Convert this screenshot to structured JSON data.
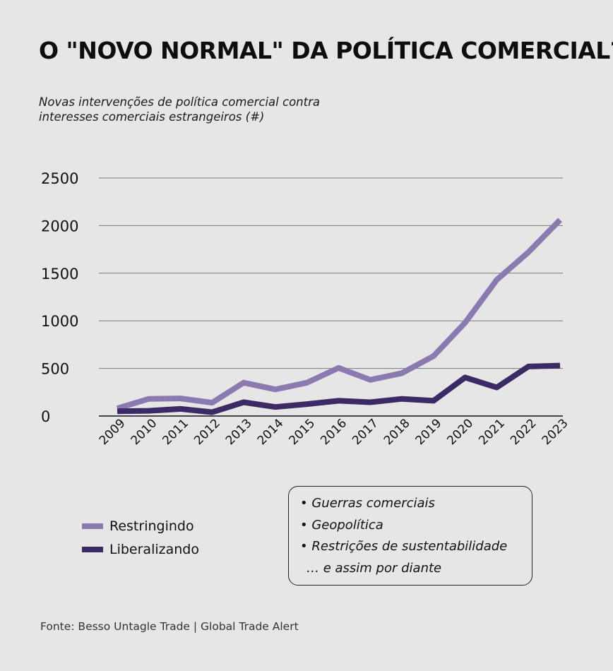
{
  "header": {
    "title": "O \"NOVO NORMAL\" DA POLÍTICA COMERCIAL?",
    "subtitle_line1": "Novas intervenções de política comercial contra",
    "subtitle_line2": "interesses comerciais estrangeiros (#)"
  },
  "chart_data": {
    "type": "line",
    "title": "O \"NOVO NORMAL\" DA POLÍTICA COMERCIAL?",
    "ylabel": "Novas intervenções de política comercial contra interesses comerciais estrangeiros (#)",
    "x": [
      "2009",
      "2010",
      "2011",
      "2012",
      "2013",
      "2014",
      "2015",
      "2016",
      "2017",
      "2018",
      "2019",
      "2020",
      "2021",
      "2022",
      "2023"
    ],
    "ylim": [
      0,
      2500
    ],
    "yticks": [
      0,
      500,
      1000,
      1500,
      2000,
      2500
    ],
    "grid": "horizontal",
    "legend_position": "bottom-left",
    "series": [
      {
        "name": "Restringindo",
        "color": "#8b7aaf",
        "values": [
          80,
          180,
          185,
          140,
          350,
          280,
          350,
          505,
          380,
          450,
          630,
          980,
          1430,
          1720,
          2060
        ]
      },
      {
        "name": "Liberalizando",
        "color": "#3c2a64",
        "values": [
          50,
          55,
          75,
          40,
          145,
          95,
          125,
          160,
          145,
          180,
          160,
          405,
          300,
          520,
          530
        ]
      }
    ]
  },
  "legend": {
    "items": [
      {
        "label": "Restringindo",
        "color": "#8b7aaf"
      },
      {
        "label": "Liberalizando",
        "color": "#3c2a64"
      }
    ]
  },
  "callout": {
    "items": [
      "• Guerras comerciais",
      "• Geopolítica",
      "• Restrições de sustentabilidade",
      "  … e assim por diante"
    ]
  },
  "source": "Fonte: Besso Untagle Trade | Global Trade Alert"
}
